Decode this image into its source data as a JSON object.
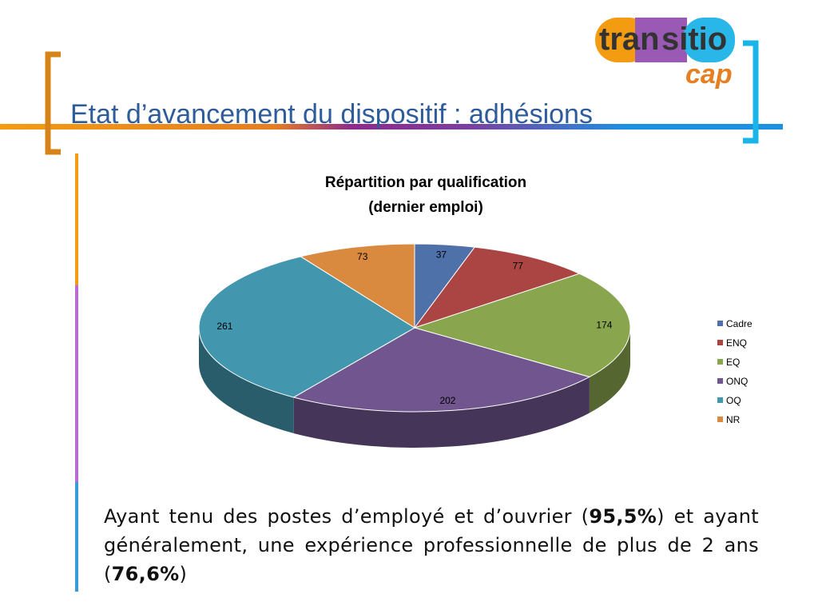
{
  "slide": {
    "title": "Etat d’avancement du dispositif : adhésions",
    "logo": [
      "tran",
      "sitio",
      "cap"
    ]
  },
  "chart_data": {
    "type": "pie3d",
    "title": "Répartition par qualification",
    "subtitle": "(dernier emploi)",
    "categories": [
      "Cadre",
      "ENQ",
      "EQ",
      "ONQ",
      "OQ",
      "NR"
    ],
    "values": [
      37,
      77,
      174,
      202,
      261,
      73
    ],
    "colors": [
      "#4f71a9",
      "#aa4543",
      "#89a54e",
      "#70558f",
      "#4296ad",
      "#d98a3f"
    ],
    "legend": "right"
  },
  "text": {
    "paragraph": [
      "Ayant tenu des postes d’employé et d’ouvrier (",
      "95,5%",
      ") et ayant généralement, une expérience professionnelle de plus de 2 ans (",
      "76,6%",
      ")"
    ]
  }
}
